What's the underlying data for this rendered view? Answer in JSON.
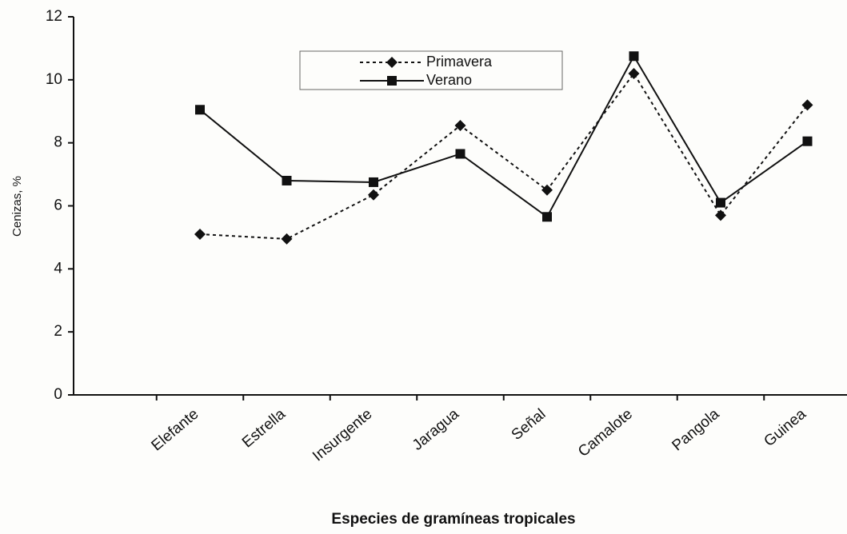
{
  "chart_data": {
    "type": "line",
    "categories": [
      "Elefante",
      "Estrella",
      "Insurgente",
      "Jaragua",
      "Señal",
      "Camalote",
      "Pangola",
      "Guinea"
    ],
    "series": [
      {
        "name": "Primavera",
        "color": "#111111",
        "dash": true,
        "marker": "diamond",
        "values": [
          5.1,
          4.95,
          6.35,
          8.55,
          6.5,
          10.2,
          5.7,
          9.2
        ]
      },
      {
        "name": "Verano",
        "color": "#111111",
        "dash": false,
        "marker": "square",
        "values": [
          9.05,
          6.8,
          6.75,
          7.65,
          5.65,
          10.75,
          6.1,
          8.05
        ]
      }
    ],
    "ylabel": "Cenizas, %",
    "xlabel": "Especies de gramíneas tropicales",
    "ylim": [
      0,
      12
    ],
    "yticks": [
      0,
      2,
      4,
      6,
      8,
      10,
      12
    ],
    "grid": false,
    "legend": "top"
  }
}
